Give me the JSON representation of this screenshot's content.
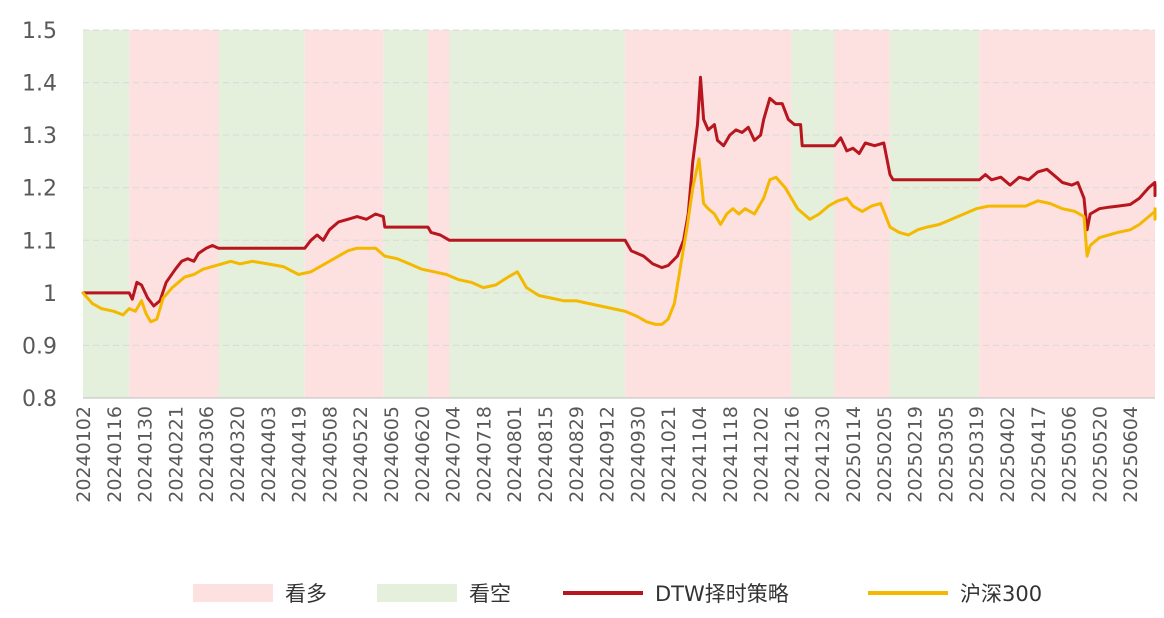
{
  "colors": {
    "bullish": "#fde1e1",
    "bearish": "#e4efdc",
    "strategy": "#b8161e",
    "index": "#f5b800",
    "axis_text": "#595959",
    "grid": "#d9d9d9"
  },
  "legend": {
    "bullish_label": "看多",
    "bearish_label": "看空",
    "strategy_label": "DTW择时策略",
    "index_label": "沪深300"
  },
  "chart_data": {
    "type": "line",
    "ylim": [
      0.8,
      1.5
    ],
    "yticks": [
      "1.5",
      "1.4",
      "1.3",
      "1.2",
      "1.1",
      "1",
      "0.9",
      "0.8"
    ],
    "grid": true,
    "legend_position": "bottom",
    "x_tick_labels": [
      "20240102",
      "20240116",
      "20240130",
      "20240221",
      "20240306",
      "20240320",
      "20240403",
      "20240419",
      "20240508",
      "20240522",
      "20240605",
      "20240620",
      "20240704",
      "20240718",
      "20240801",
      "20240815",
      "20240829",
      "20240912",
      "20240930",
      "20241021",
      "20241104",
      "20241118",
      "20241202",
      "20241216",
      "20241230",
      "20250114",
      "20250205",
      "20250219",
      "20250305",
      "20250319",
      "20250402",
      "20250417",
      "20250506",
      "20250520",
      "20250604"
    ],
    "regimes": [
      {
        "start": 0.0,
        "end": 1.5,
        "signal": "bearish"
      },
      {
        "start": 1.5,
        "end": 4.4,
        "signal": "bullish"
      },
      {
        "start": 4.4,
        "end": 7.2,
        "signal": "bearish"
      },
      {
        "start": 7.2,
        "end": 9.75,
        "signal": "bullish"
      },
      {
        "start": 9.75,
        "end": 11.2,
        "signal": "bearish"
      },
      {
        "start": 11.2,
        "end": 11.9,
        "signal": "bullish"
      },
      {
        "start": 11.9,
        "end": 17.6,
        "signal": "bearish"
      },
      {
        "start": 17.6,
        "end": 23.0,
        "signal": "bullish"
      },
      {
        "start": 23.0,
        "end": 24.4,
        "signal": "bearish"
      },
      {
        "start": 24.4,
        "end": 26.2,
        "signal": "bullish"
      },
      {
        "start": 26.2,
        "end": 29.1,
        "signal": "bearish"
      },
      {
        "start": 29.1,
        "end": 36.9,
        "signal": "bullish"
      },
      {
        "start": 36.9,
        "end": 37.9,
        "signal": "bearish"
      }
    ],
    "series": [
      {
        "name": "DTW择时策略",
        "key": "strategy",
        "points": [
          [
            0,
            1.0
          ],
          [
            1.5,
            1.0
          ],
          [
            1.6,
            0.988
          ],
          [
            1.75,
            1.02
          ],
          [
            1.9,
            1.015
          ],
          [
            2.1,
            0.99
          ],
          [
            2.3,
            0.975
          ],
          [
            2.5,
            0.985
          ],
          [
            2.7,
            1.02
          ],
          [
            3.0,
            1.045
          ],
          [
            3.2,
            1.06
          ],
          [
            3.4,
            1.065
          ],
          [
            3.6,
            1.06
          ],
          [
            3.75,
            1.075
          ],
          [
            4.0,
            1.085
          ],
          [
            4.2,
            1.09
          ],
          [
            4.4,
            1.085
          ],
          [
            7.2,
            1.085
          ],
          [
            7.4,
            1.1
          ],
          [
            7.6,
            1.11
          ],
          [
            7.8,
            1.1
          ],
          [
            8.0,
            1.12
          ],
          [
            8.3,
            1.135
          ],
          [
            8.6,
            1.14
          ],
          [
            8.9,
            1.145
          ],
          [
            9.2,
            1.14
          ],
          [
            9.5,
            1.15
          ],
          [
            9.75,
            1.145
          ],
          [
            9.8,
            1.125
          ],
          [
            11.2,
            1.125
          ],
          [
            11.3,
            1.115
          ],
          [
            11.6,
            1.11
          ],
          [
            11.9,
            1.1
          ],
          [
            17.6,
            1.1
          ],
          [
            17.8,
            1.08
          ],
          [
            18.2,
            1.07
          ],
          [
            18.5,
            1.055
          ],
          [
            18.8,
            1.048
          ],
          [
            19.0,
            1.052
          ],
          [
            19.3,
            1.07
          ],
          [
            19.5,
            1.1
          ],
          [
            19.65,
            1.15
          ],
          [
            19.8,
            1.25
          ],
          [
            19.95,
            1.32
          ],
          [
            20.05,
            1.41
          ],
          [
            20.15,
            1.33
          ],
          [
            20.3,
            1.31
          ],
          [
            20.5,
            1.32
          ],
          [
            20.6,
            1.29
          ],
          [
            20.8,
            1.28
          ],
          [
            21.0,
            1.3
          ],
          [
            21.2,
            1.31
          ],
          [
            21.4,
            1.305
          ],
          [
            21.6,
            1.315
          ],
          [
            21.8,
            1.29
          ],
          [
            22.0,
            1.3
          ],
          [
            22.1,
            1.33
          ],
          [
            22.3,
            1.37
          ],
          [
            22.5,
            1.36
          ],
          [
            22.7,
            1.36
          ],
          [
            22.9,
            1.33
          ],
          [
            23.1,
            1.32
          ],
          [
            23.3,
            1.32
          ],
          [
            23.35,
            1.28
          ],
          [
            24.4,
            1.28
          ],
          [
            24.6,
            1.295
          ],
          [
            24.8,
            1.27
          ],
          [
            25.0,
            1.275
          ],
          [
            25.2,
            1.265
          ],
          [
            25.4,
            1.285
          ],
          [
            25.7,
            1.28
          ],
          [
            26.0,
            1.285
          ],
          [
            26.2,
            1.225
          ],
          [
            26.3,
            1.215
          ],
          [
            29.1,
            1.215
          ],
          [
            29.3,
            1.225
          ],
          [
            29.5,
            1.215
          ],
          [
            29.8,
            1.22
          ],
          [
            30.1,
            1.205
          ],
          [
            30.4,
            1.22
          ],
          [
            30.7,
            1.215
          ],
          [
            31.0,
            1.23
          ],
          [
            31.3,
            1.235
          ],
          [
            31.6,
            1.22
          ],
          [
            31.8,
            1.21
          ],
          [
            32.1,
            1.205
          ],
          [
            32.3,
            1.21
          ],
          [
            32.5,
            1.18
          ],
          [
            32.6,
            1.12
          ],
          [
            32.7,
            1.15
          ],
          [
            33.0,
            1.16
          ],
          [
            33.3,
            1.163
          ],
          [
            33.6,
            1.165
          ],
          [
            34.0,
            1.168
          ],
          [
            34.3,
            1.18
          ],
          [
            34.6,
            1.2
          ],
          [
            34.8,
            1.21
          ],
          [
            35.1,
            1.2
          ],
          [
            35.4,
            1.205
          ],
          [
            35.6,
            1.195
          ],
          [
            35.8,
            1.185
          ],
          [
            36.0,
            1.185
          ],
          [
            37.9,
            1.185
          ]
        ]
      },
      {
        "name": "沪深300",
        "key": "index",
        "points": [
          [
            0,
            1.0
          ],
          [
            0.3,
            0.98
          ],
          [
            0.6,
            0.97
          ],
          [
            1.0,
            0.965
          ],
          [
            1.3,
            0.958
          ],
          [
            1.5,
            0.97
          ],
          [
            1.7,
            0.965
          ],
          [
            1.9,
            0.985
          ],
          [
            2.05,
            0.96
          ],
          [
            2.2,
            0.945
          ],
          [
            2.4,
            0.95
          ],
          [
            2.6,
            0.99
          ],
          [
            2.9,
            1.01
          ],
          [
            3.1,
            1.02
          ],
          [
            3.3,
            1.03
          ],
          [
            3.6,
            1.035
          ],
          [
            3.9,
            1.045
          ],
          [
            4.2,
            1.05
          ],
          [
            4.5,
            1.055
          ],
          [
            4.8,
            1.06
          ],
          [
            5.1,
            1.055
          ],
          [
            5.5,
            1.06
          ],
          [
            6.0,
            1.055
          ],
          [
            6.5,
            1.05
          ],
          [
            7.0,
            1.035
          ],
          [
            7.4,
            1.04
          ],
          [
            7.7,
            1.05
          ],
          [
            8.0,
            1.06
          ],
          [
            8.3,
            1.07
          ],
          [
            8.6,
            1.08
          ],
          [
            8.9,
            1.085
          ],
          [
            9.2,
            1.085
          ],
          [
            9.5,
            1.085
          ],
          [
            9.8,
            1.07
          ],
          [
            10.2,
            1.065
          ],
          [
            10.6,
            1.055
          ],
          [
            11.0,
            1.045
          ],
          [
            11.4,
            1.04
          ],
          [
            11.8,
            1.035
          ],
          [
            12.2,
            1.025
          ],
          [
            12.6,
            1.02
          ],
          [
            13.0,
            1.01
          ],
          [
            13.4,
            1.015
          ],
          [
            13.8,
            1.03
          ],
          [
            14.1,
            1.04
          ],
          [
            14.4,
            1.01
          ],
          [
            14.8,
            0.995
          ],
          [
            15.2,
            0.99
          ],
          [
            15.6,
            0.985
          ],
          [
            16.0,
            0.985
          ],
          [
            16.4,
            0.98
          ],
          [
            16.8,
            0.975
          ],
          [
            17.2,
            0.97
          ],
          [
            17.6,
            0.965
          ],
          [
            18.0,
            0.955
          ],
          [
            18.3,
            0.945
          ],
          [
            18.6,
            0.94
          ],
          [
            18.8,
            0.94
          ],
          [
            19.0,
            0.95
          ],
          [
            19.2,
            0.98
          ],
          [
            19.4,
            1.05
          ],
          [
            19.6,
            1.12
          ],
          [
            19.8,
            1.2
          ],
          [
            20.0,
            1.255
          ],
          [
            20.15,
            1.17
          ],
          [
            20.3,
            1.16
          ],
          [
            20.5,
            1.15
          ],
          [
            20.7,
            1.13
          ],
          [
            20.9,
            1.15
          ],
          [
            21.1,
            1.16
          ],
          [
            21.3,
            1.15
          ],
          [
            21.5,
            1.16
          ],
          [
            21.8,
            1.15
          ],
          [
            22.1,
            1.18
          ],
          [
            22.3,
            1.215
          ],
          [
            22.5,
            1.22
          ],
          [
            22.8,
            1.2
          ],
          [
            23.0,
            1.18
          ],
          [
            23.2,
            1.16
          ],
          [
            23.4,
            1.15
          ],
          [
            23.6,
            1.14
          ],
          [
            23.9,
            1.15
          ],
          [
            24.2,
            1.165
          ],
          [
            24.5,
            1.175
          ],
          [
            24.8,
            1.18
          ],
          [
            25.0,
            1.165
          ],
          [
            25.3,
            1.155
          ],
          [
            25.6,
            1.165
          ],
          [
            25.9,
            1.17
          ],
          [
            26.2,
            1.125
          ],
          [
            26.5,
            1.115
          ],
          [
            26.8,
            1.11
          ],
          [
            27.1,
            1.12
          ],
          [
            27.4,
            1.125
          ],
          [
            27.8,
            1.13
          ],
          [
            28.2,
            1.14
          ],
          [
            28.6,
            1.15
          ],
          [
            29.0,
            1.16
          ],
          [
            29.4,
            1.165
          ],
          [
            29.8,
            1.165
          ],
          [
            30.2,
            1.165
          ],
          [
            30.6,
            1.165
          ],
          [
            31.0,
            1.175
          ],
          [
            31.4,
            1.17
          ],
          [
            31.8,
            1.16
          ],
          [
            32.2,
            1.155
          ],
          [
            32.5,
            1.145
          ],
          [
            32.6,
            1.07
          ],
          [
            32.7,
            1.09
          ],
          [
            33.0,
            1.105
          ],
          [
            33.3,
            1.11
          ],
          [
            33.6,
            1.115
          ],
          [
            34.0,
            1.12
          ],
          [
            34.3,
            1.13
          ],
          [
            34.6,
            1.145
          ],
          [
            34.9,
            1.155
          ],
          [
            35.2,
            1.16
          ],
          [
            35.5,
            1.15
          ],
          [
            35.8,
            1.14
          ],
          [
            36.1,
            1.14
          ],
          [
            36.4,
            1.145
          ],
          [
            36.7,
            1.15
          ],
          [
            37.0,
            1.145
          ],
          [
            37.3,
            1.145
          ],
          [
            37.6,
            1.15
          ],
          [
            37.9,
            1.14
          ]
        ]
      }
    ]
  }
}
